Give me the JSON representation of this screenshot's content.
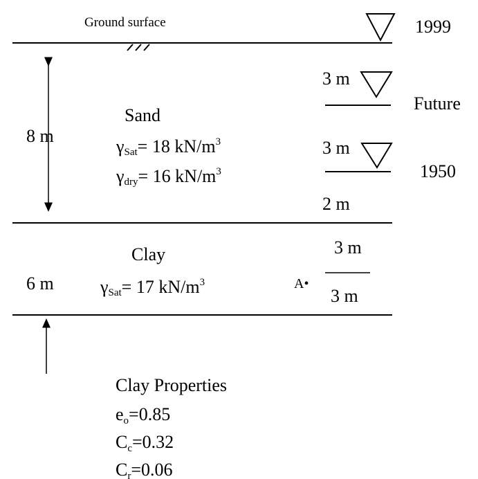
{
  "ground_surface": "Ground surface",
  "water_tables": [
    {
      "year": "1999"
    },
    {
      "depth_label": "3 m",
      "year": "Future"
    },
    {
      "depth_label": "3 m",
      "year": "1950"
    }
  ],
  "below_1950": "2 m",
  "sand": {
    "name": "Sand",
    "thickness": "8 m",
    "gamma_sat": {
      "symbol": "γ",
      "subscript": "Sat",
      "text": "= 18 kN/m",
      "superscript": "3"
    },
    "gamma_dry": {
      "symbol": "γ",
      "subscript": "dry",
      "text": "= 16 kN/m",
      "superscript": "3"
    }
  },
  "clay": {
    "name": "Clay",
    "thickness": "6 m",
    "gamma_sat": {
      "symbol": "γ",
      "subscript": "Sat",
      "text": "= 17 kN/m",
      "superscript": "3"
    },
    "point": "A•",
    "above_point": "3 m",
    "below_point": "3 m"
  },
  "clay_properties": {
    "title": "Clay Properties",
    "items": [
      {
        "symbol": "e",
        "subscript": "o",
        "text": "=0.85"
      },
      {
        "symbol": "C",
        "subscript": "c",
        "text": "=0.32"
      },
      {
        "symbol": "C",
        "subscript": "r",
        "text": "=0.06"
      }
    ]
  }
}
